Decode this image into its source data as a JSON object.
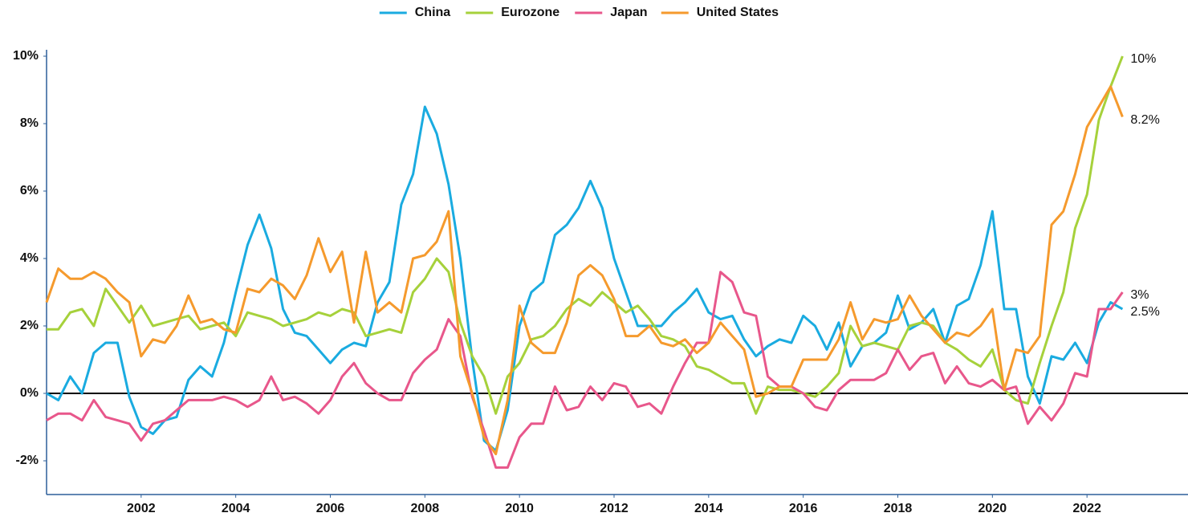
{
  "chart_data": {
    "type": "line",
    "x": [
      2000,
      2000.25,
      2000.5,
      2000.75,
      2001,
      2001.25,
      2001.5,
      2001.75,
      2002,
      2002.25,
      2002.5,
      2002.75,
      2003,
      2003.25,
      2003.5,
      2003.75,
      2004,
      2004.25,
      2004.5,
      2004.75,
      2005,
      2005.25,
      2005.5,
      2005.75,
      2006,
      2006.25,
      2006.5,
      2006.75,
      2007,
      2007.25,
      2007.5,
      2007.75,
      2008,
      2008.25,
      2008.5,
      2008.75,
      2009,
      2009.25,
      2009.5,
      2009.75,
      2010,
      2010.25,
      2010.5,
      2010.75,
      2011,
      2011.25,
      2011.5,
      2011.75,
      2012,
      2012.25,
      2012.5,
      2012.75,
      2013,
      2013.25,
      2013.5,
      2013.75,
      2014,
      2014.25,
      2014.5,
      2014.75,
      2015,
      2015.25,
      2015.5,
      2015.75,
      2016,
      2016.25,
      2016.5,
      2016.75,
      2017,
      2017.25,
      2017.5,
      2017.75,
      2018,
      2018.25,
      2018.5,
      2018.75,
      2019,
      2019.25,
      2019.5,
      2019.75,
      2020,
      2020.25,
      2020.5,
      2020.75,
      2021,
      2021.25,
      2021.5,
      2021.75,
      2022,
      2022.25,
      2022.5,
      2022.75
    ],
    "series": [
      {
        "name": "China",
        "color": "#1aabe0",
        "end_label": "2.5%",
        "values": [
          0.0,
          -0.2,
          0.5,
          0.0,
          1.2,
          1.5,
          1.5,
          -0.1,
          -1.0,
          -1.2,
          -0.8,
          -0.7,
          0.4,
          0.8,
          0.5,
          1.5,
          3.0,
          4.4,
          5.3,
          4.3,
          2.5,
          1.8,
          1.7,
          1.3,
          0.9,
          1.3,
          1.5,
          1.4,
          2.7,
          3.3,
          5.6,
          6.5,
          8.5,
          7.7,
          6.2,
          4.0,
          1.0,
          -1.4,
          -1.7,
          -0.5,
          2.0,
          3.0,
          3.3,
          4.7,
          5.0,
          5.5,
          6.3,
          5.5,
          4.0,
          3.0,
          2.0,
          2.0,
          2.0,
          2.4,
          2.7,
          3.1,
          2.4,
          2.2,
          2.3,
          1.6,
          1.1,
          1.4,
          1.6,
          1.5,
          2.3,
          2.0,
          1.3,
          2.1,
          0.8,
          1.4,
          1.5,
          1.8,
          2.9,
          1.9,
          2.1,
          2.5,
          1.5,
          2.6,
          2.8,
          3.8,
          5.4,
          2.5,
          2.5,
          0.5,
          -0.3,
          1.1,
          1.0,
          1.5,
          0.9,
          2.1,
          2.7,
          2.5
        ]
      },
      {
        "name": "Eurozone",
        "color": "#a6d13b",
        "end_label": "10%",
        "values": [
          1.9,
          1.9,
          2.4,
          2.5,
          2.0,
          3.1,
          2.6,
          2.1,
          2.6,
          2.0,
          2.1,
          2.2,
          2.3,
          1.9,
          2.0,
          2.1,
          1.7,
          2.4,
          2.3,
          2.2,
          2.0,
          2.1,
          2.2,
          2.4,
          2.3,
          2.5,
          2.4,
          1.7,
          1.8,
          1.9,
          1.8,
          3.0,
          3.4,
          4.0,
          3.6,
          2.1,
          1.1,
          0.5,
          -0.6,
          0.5,
          0.9,
          1.6,
          1.7,
          2.0,
          2.5,
          2.8,
          2.6,
          3.0,
          2.7,
          2.4,
          2.6,
          2.2,
          1.7,
          1.6,
          1.4,
          0.8,
          0.7,
          0.5,
          0.3,
          0.3,
          -0.6,
          0.2,
          0.1,
          0.1,
          0.0,
          -0.1,
          0.2,
          0.6,
          2.0,
          1.4,
          1.5,
          1.4,
          1.3,
          2.0,
          2.1,
          2.0,
          1.5,
          1.3,
          1.0,
          0.8,
          1.3,
          0.1,
          -0.2,
          -0.3,
          0.9,
          2.0,
          3.0,
          4.9,
          5.9,
          8.1,
          9.1,
          10
        ]
      },
      {
        "name": "Japan",
        "color": "#e8578b",
        "end_label": "3%",
        "values": [
          -0.8,
          -0.6,
          -0.6,
          -0.8,
          -0.2,
          -0.7,
          -0.8,
          -0.9,
          -1.4,
          -0.9,
          -0.8,
          -0.5,
          -0.2,
          -0.2,
          -0.2,
          -0.1,
          -0.2,
          -0.4,
          -0.2,
          0.5,
          -0.2,
          -0.1,
          -0.3,
          -0.6,
          -0.2,
          0.5,
          0.9,
          0.3,
          0.0,
          -0.2,
          -0.2,
          0.6,
          1.0,
          1.3,
          2.2,
          1.7,
          -0.1,
          -1.1,
          -2.2,
          -2.2,
          -1.3,
          -0.9,
          -0.9,
          0.2,
          -0.5,
          -0.4,
          0.2,
          -0.2,
          0.3,
          0.2,
          -0.4,
          -0.3,
          -0.6,
          0.2,
          0.9,
          1.5,
          1.5,
          3.6,
          3.3,
          2.4,
          2.3,
          0.5,
          0.2,
          0.2,
          0.0,
          -0.4,
          -0.5,
          0.1,
          0.4,
          0.4,
          0.4,
          0.6,
          1.3,
          0.7,
          1.1,
          1.2,
          0.3,
          0.8,
          0.3,
          0.2,
          0.4,
          0.1,
          0.2,
          -0.9,
          -0.4,
          -0.8,
          -0.3,
          0.6,
          0.5,
          2.5,
          2.5,
          3
        ]
      },
      {
        "name": "United States",
        "color": "#f59a2d",
        "end_label": "8.2%",
        "values": [
          2.7,
          3.7,
          3.4,
          3.4,
          3.6,
          3.4,
          3.0,
          2.7,
          1.1,
          1.6,
          1.5,
          2.0,
          2.9,
          2.1,
          2.2,
          1.9,
          1.8,
          3.1,
          3.0,
          3.4,
          3.2,
          2.8,
          3.5,
          4.6,
          3.6,
          4.2,
          2.1,
          4.2,
          2.4,
          2.7,
          2.4,
          4.0,
          4.1,
          4.5,
          5.4,
          1.1,
          0.0,
          -1.3,
          -1.8,
          -0.2,
          2.6,
          1.5,
          1.2,
          1.2,
          2.1,
          3.5,
          3.8,
          3.5,
          2.8,
          1.7,
          1.7,
          2.0,
          1.5,
          1.4,
          1.6,
          1.2,
          1.5,
          2.1,
          1.7,
          1.3,
          -0.1,
          0.0,
          0.2,
          0.2,
          1.0,
          1.0,
          1.0,
          1.6,
          2.7,
          1.6,
          2.2,
          2.1,
          2.2,
          2.9,
          2.3,
          1.9,
          1.5,
          1.8,
          1.7,
          2.0,
          2.5,
          0.1,
          1.3,
          1.2,
          1.7,
          5.0,
          5.4,
          6.5,
          7.9,
          8.5,
          9.1,
          8.2
        ]
      }
    ],
    "xlim": [
      2000,
      2024
    ],
    "xticks": [
      2002,
      2004,
      2006,
      2008,
      2010,
      2012,
      2014,
      2016,
      2018,
      2020,
      2022
    ],
    "ylim": [
      -3,
      10
    ],
    "yticks": [
      {
        "value": -2,
        "label": "-2%"
      },
      {
        "value": 0,
        "label": "0%"
      },
      {
        "value": 2,
        "label": "2%"
      },
      {
        "value": 4,
        "label": "4%"
      },
      {
        "value": 6,
        "label": "6%"
      },
      {
        "value": 8,
        "label": "8%"
      },
      {
        "value": 10,
        "label": "10%"
      }
    ],
    "legend": "top"
  }
}
